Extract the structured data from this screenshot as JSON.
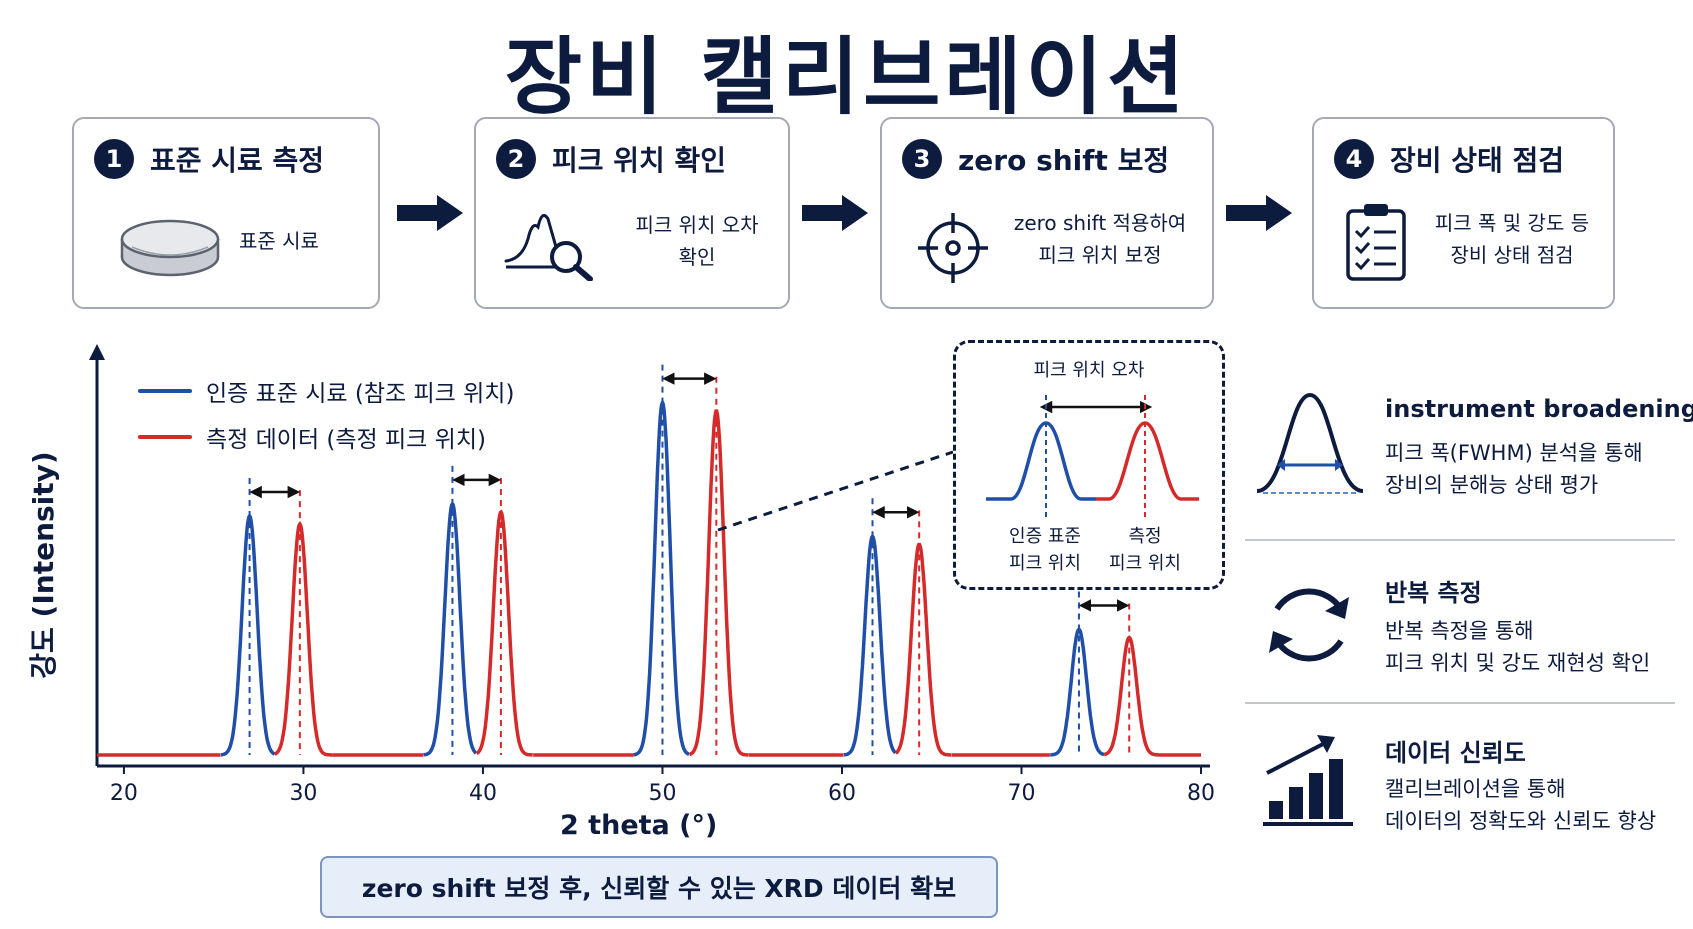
{
  "title": "장비 캘리브레이션",
  "steps": [
    {
      "number": "1",
      "title": "표준 시료 측정",
      "text": [
        "표준 시료"
      ],
      "icon": "sample-disk-icon"
    },
    {
      "number": "2",
      "title": "피크 위치 확인",
      "text": [
        "피크 위치 오차",
        "확인"
      ],
      "icon": "peak-magnifier-icon"
    },
    {
      "number": "3",
      "title": "zero shift 보정",
      "text": [
        "zero shift 적용하여",
        "피크 위치 보정"
      ],
      "icon": "crosshair-icon"
    },
    {
      "number": "4",
      "title": "장비 상태 점검",
      "text": [
        "피크 폭 및 강도 등",
        "장비 상태 점검"
      ],
      "icon": "clipboard-checklist-icon"
    }
  ],
  "legend": [
    {
      "label": "인증 표준 시료 (참조 피크 위치)",
      "color": "#1f4fa8"
    },
    {
      "label": "측정 데이터 (측정 피크 위치)",
      "color": "#d42a2a"
    }
  ],
  "chart_data": {
    "type": "line",
    "xlabel": "2 theta (°)",
    "ylabel": "강도 (Intensity)",
    "xlim": [
      18.5,
      80.5
    ],
    "ylim": [
      0,
      1
    ],
    "x_ticks": [
      "20",
      "30",
      "40",
      "50",
      "60",
      "70",
      "80"
    ],
    "series": [
      {
        "name": "인증 표준 시료 (참조 피크 위치)",
        "color": "#1f4fa8",
        "peaks_x": [
          27.0,
          38.3,
          50.0,
          61.7,
          73.2
        ],
        "peaks_y": [
          0.59,
          0.62,
          0.87,
          0.54,
          0.31
        ]
      },
      {
        "name": "측정 데이터 (측정 피크 위치)",
        "color": "#d42a2a",
        "peaks_x": [
          29.8,
          41.0,
          53.0,
          64.3,
          76.0
        ],
        "peaks_y": [
          0.57,
          0.6,
          0.85,
          0.52,
          0.29
        ]
      }
    ]
  },
  "inset": {
    "title": "피크 위치 오차",
    "left_label": [
      "인증 표준",
      "피크 위치"
    ],
    "right_label": [
      "측정",
      "피크 위치"
    ]
  },
  "side": [
    {
      "title": "instrument broadening",
      "text": [
        "피크 폭(FWHM) 분석을 통해",
        "장비의 분해능 상태 평가"
      ],
      "icon": "bell-curve-width-icon"
    },
    {
      "title": "반복 측정",
      "text": [
        "반복 측정을 통해",
        "피크 위치 및 강도 재현성 확인"
      ],
      "icon": "refresh-cycle-icon"
    },
    {
      "title": "데이터 신뢰도",
      "text": [
        "캘리브레이션을 통해",
        "데이터의 정확도와 신뢰도 향상"
      ],
      "icon": "growth-chart-icon"
    }
  ],
  "banner": "zero shift 보정 후, 신뢰할 수 있는 XRD 데이터 확보"
}
